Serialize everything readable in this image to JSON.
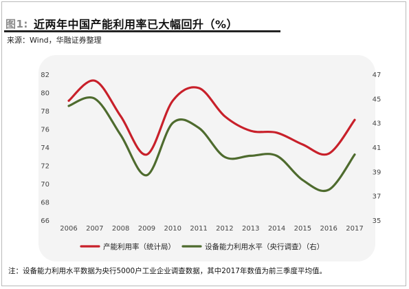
{
  "figure": {
    "badge": "图1:",
    "title": "近两年中国产能利用率已大幅回升（%）",
    "source": "来源：Wind，华融证券整理",
    "footnote": "注：设备能力利用水平数据为央行5000户工业企业调查数据，其中2017年数值为前三季度平均值。"
  },
  "colors": {
    "series_1": "#c8202a",
    "series_2": "#4e6b2e",
    "axis_text": "#444444",
    "panel": "#f4f4f4"
  },
  "chart_data": {
    "type": "line",
    "x": [
      "2006",
      "2007",
      "2008",
      "2009",
      "2010",
      "2011",
      "2012",
      "2013",
      "2014",
      "2015",
      "2016",
      "2017"
    ],
    "left_axis": {
      "ylim": [
        66,
        82
      ],
      "ticks": [
        66,
        68,
        70,
        72,
        74,
        76,
        78,
        80,
        82
      ]
    },
    "right_axis": {
      "ylim": [
        35,
        47
      ],
      "ticks": [
        35,
        37,
        39,
        41,
        43,
        45,
        47
      ]
    },
    "series": [
      {
        "name": "产能利用率（统计局）",
        "axis": "left",
        "values": [
          79.1,
          81.3,
          77.4,
          73.2,
          79.1,
          80.5,
          77.4,
          75.8,
          75.6,
          74.3,
          73.3,
          77.0
        ]
      },
      {
        "name": "设备能力利用水平（央行调查）（右）",
        "axis": "right",
        "values": [
          44.4,
          45.0,
          42.0,
          38.7,
          43.0,
          42.6,
          40.2,
          40.3,
          40.3,
          38.3,
          37.5,
          40.4
        ]
      }
    ],
    "legend": "bottom",
    "grid": false
  }
}
